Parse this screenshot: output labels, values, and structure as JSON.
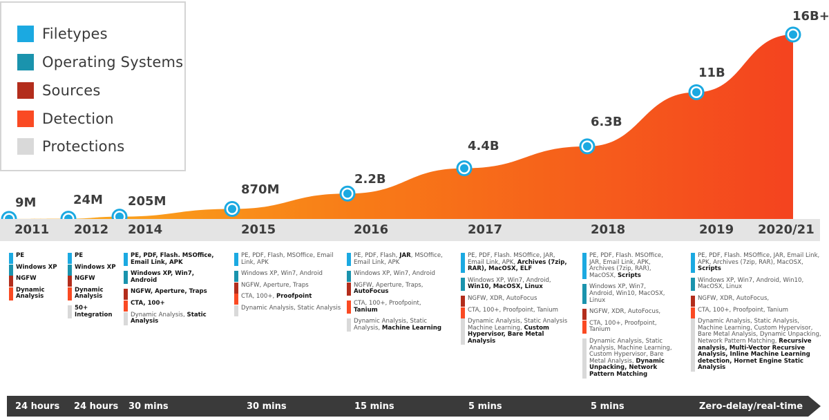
{
  "legend": [
    {
      "label": "Filetypes",
      "color": "#1ba9e1"
    },
    {
      "label": "Operating Systems",
      "color": "#1a93ad"
    },
    {
      "label": "Sources",
      "color": "#b32d1c"
    },
    {
      "label": "Detection",
      "color": "#fa4a23"
    },
    {
      "label": "Protections",
      "color": "#d9d9d9"
    }
  ],
  "chart_data": {
    "type": "area",
    "x": [
      "2011",
      "2012",
      "2014",
      "2015",
      "2016",
      "2017",
      "2018",
      "2019",
      "2020/21"
    ],
    "values": [
      0.009,
      0.024,
      0.205,
      0.87,
      2.2,
      4.4,
      6.3,
      11,
      16
    ],
    "value_labels": [
      "9M",
      "24M",
      "205M",
      "870M",
      "2.2B",
      "4.4B",
      "6.3B",
      "11B",
      "16B+"
    ],
    "gradient_colors": [
      "#fbb11f",
      "#f87b17",
      "#f4431f"
    ],
    "marker_color": "#1ba9e1"
  },
  "columns": [
    {
      "rows": [
        {
          "t": "Filetypes",
          "items": [
            {
              "text": "PE",
              "bold": true
            }
          ]
        },
        {
          "t": "Operating Systems",
          "items": [
            {
              "text": "Windows XP",
              "bold": true
            }
          ]
        },
        {
          "t": "Sources",
          "items": [
            {
              "text": "NGFW",
              "bold": true
            }
          ]
        },
        {
          "t": "Detection",
          "items": [
            {
              "text": "Dynamic Analysis",
              "bold": true
            }
          ]
        }
      ]
    },
    {
      "rows": [
        {
          "t": "Filetypes",
          "items": [
            {
              "text": "PE",
              "bold": true
            }
          ]
        },
        {
          "t": "Operating Systems",
          "items": [
            {
              "text": "Windows XP",
              "bold": true
            }
          ]
        },
        {
          "t": "Sources",
          "items": [
            {
              "text": "NGFW",
              "bold": true
            }
          ]
        },
        {
          "t": "Detection",
          "items": [
            {
              "text": "Dynamic Analysis",
              "bold": true
            }
          ]
        },
        {
          "t": "Protections",
          "items": [
            {
              "text": "50+ Integration",
              "bold": true
            }
          ]
        }
      ]
    },
    {
      "rows": [
        {
          "t": "Filetypes",
          "items": [
            {
              "text": "PE, PDF, Flash. MSOffice, Email Link, APK",
              "bold": true
            }
          ]
        },
        {
          "t": "Operating Systems",
          "items": [
            {
              "text": "Windows XP, Win7, Android",
              "bold": true
            }
          ]
        },
        {
          "t": "Sources",
          "items": [
            {
              "text": "NGFW, Aperture, Traps",
              "bold": true
            }
          ]
        },
        {
          "t": "Detection",
          "items": [
            {
              "text": "CTA, 100+",
              "bold": true
            }
          ]
        },
        {
          "t": "Protections",
          "items": [
            {
              "text": "Dynamic Analysis, ",
              "bold": false
            },
            {
              "text": "Static Analysis",
              "bold": true
            }
          ]
        }
      ]
    },
    {
      "rows": [
        {
          "t": "Filetypes",
          "items": [
            {
              "text": "PE, PDF, Flash, MSOffice, Email Link, APK",
              "bold": false
            }
          ]
        },
        {
          "t": "Operating Systems",
          "items": [
            {
              "text": "Windows XP, Win7, Android",
              "bold": false
            }
          ]
        },
        {
          "t": "Sources",
          "items": [
            {
              "text": "NGFW, Aperture, Traps",
              "bold": false
            }
          ]
        },
        {
          "t": "Detection",
          "items": [
            {
              "text": "CTA, 100+, ",
              "bold": false
            },
            {
              "text": "Proofpoint",
              "bold": true
            }
          ]
        },
        {
          "t": "Protections",
          "items": [
            {
              "text": "Dynamic Analysis, Static Analysis",
              "bold": false
            }
          ]
        }
      ]
    },
    {
      "rows": [
        {
          "t": "Filetypes",
          "items": [
            {
              "text": "PE, PDF, Flash, ",
              "bold": false
            },
            {
              "text": "JAR",
              "bold": true
            },
            {
              "text": ", MSOffice, Email Link, APK",
              "bold": false
            }
          ]
        },
        {
          "t": "Operating Systems",
          "items": [
            {
              "text": "Windows XP, Win7, Android",
              "bold": false
            }
          ]
        },
        {
          "t": "Sources",
          "items": [
            {
              "text": "NGFW, Aperture, Traps, ",
              "bold": false
            },
            {
              "text": "AutoFocus",
              "bold": true
            }
          ]
        },
        {
          "t": "Detection",
          "items": [
            {
              "text": "CTA, 100+, Proofpoint, ",
              "bold": false
            },
            {
              "text": "Tanium",
              "bold": true
            }
          ]
        },
        {
          "t": "Protections",
          "items": [
            {
              "text": "Dynamic Analysis, Static Analysis, ",
              "bold": false
            },
            {
              "text": "Machine Learning",
              "bold": true
            }
          ]
        }
      ]
    },
    {
      "rows": [
        {
          "t": "Filetypes",
          "items": [
            {
              "text": "PE, PDF, Flash. MSOffice, JAR, Email Link, APK, ",
              "bold": false
            },
            {
              "text": "Archives (7zip, RAR), MacOSX, ELF",
              "bold": true
            }
          ]
        },
        {
          "t": "Operating Systems",
          "items": [
            {
              "text": "Windows XP, Win7, Android, ",
              "bold": false
            },
            {
              "text": "Win10, MacOSX, Linux",
              "bold": true
            }
          ]
        },
        {
          "t": "Sources",
          "items": [
            {
              "text": "NGFW, XDR, AutoFocus",
              "bold": false
            }
          ]
        },
        {
          "t": "Detection",
          "items": [
            {
              "text": "CTA, 100+, Proofpoint, Tanium",
              "bold": false
            }
          ]
        },
        {
          "t": "Protections",
          "items": [
            {
              "text": "Dynamic Analysis, Static Analysis Machine Learning, ",
              "bold": false
            },
            {
              "text": "Custom Hypervisor, Bare Metal Analysis",
              "bold": true
            }
          ]
        }
      ]
    },
    {
      "rows": [
        {
          "t": "Filetypes",
          "items": [
            {
              "text": "PE, PDF, Flash. MSOffice, JAR, Email Link, APK, Archives (7zip, RAR), MacOSX, ",
              "bold": false
            },
            {
              "text": "Scripts",
              "bold": true
            }
          ]
        },
        {
          "t": "Operating Systems",
          "items": [
            {
              "text": "Windows XP, Win7, Android, Win10, MacOSX, Linux",
              "bold": false
            }
          ]
        },
        {
          "t": "Sources",
          "items": [
            {
              "text": "NGFW, XDR, AutoFocus,",
              "bold": false
            }
          ]
        },
        {
          "t": "Detection",
          "items": [
            {
              "text": "CTA, 100+, Proofpoint, Tanium",
              "bold": false
            }
          ]
        },
        {
          "t": "Protections",
          "items": [
            {
              "text": "Dynamic Analysis, Static Analysis, Machine Learning, Custom Hypervisor, Bare Metal Analysis, ",
              "bold": false
            },
            {
              "text": "Dynamic Unpacking, Network Pattern Matching",
              "bold": true
            }
          ]
        }
      ]
    },
    {
      "rows": [
        {
          "t": "Filetypes",
          "items": [
            {
              "text": "PE, PDF, Flash. MSOffice, JAR, Email Link, APK, Archives (7zip, RAR), MacOSX, ",
              "bold": false
            },
            {
              "text": "Scripts",
              "bold": true
            }
          ]
        },
        {
          "t": "Operating Systems",
          "items": [
            {
              "text": "Windows XP, Win7, Android, Win10, MacOSX, Linux",
              "bold": false
            }
          ]
        },
        {
          "t": "Sources",
          "items": [
            {
              "text": "NGFW, XDR, AutoFocus,",
              "bold": false
            }
          ]
        },
        {
          "t": "Detection",
          "items": [
            {
              "text": "CTA, 100+, Proofpoint, Tanium",
              "bold": false
            }
          ]
        },
        {
          "t": "Protections",
          "items": [
            {
              "text": "Dynamic Analysis, Static Analysis, Machine Learning, Custom Hypervisor, Bare Metal Analysis, Dynamic Unpacking, Network Pattern Matching, ",
              "bold": false
            },
            {
              "text": "Recursive analysis, Multi-Vector Recursive Analysis, Inline Machine Learning detection, Hornet Engine Static Analysis",
              "bold": true
            }
          ]
        }
      ]
    }
  ],
  "speeds": [
    "24 hours",
    "24 hours",
    "30 mins",
    "30 mins",
    "15 mins",
    "5 mins",
    "5 mins",
    "Zero-delay/real-time"
  ],
  "arrow_color": "#3a3a3a"
}
